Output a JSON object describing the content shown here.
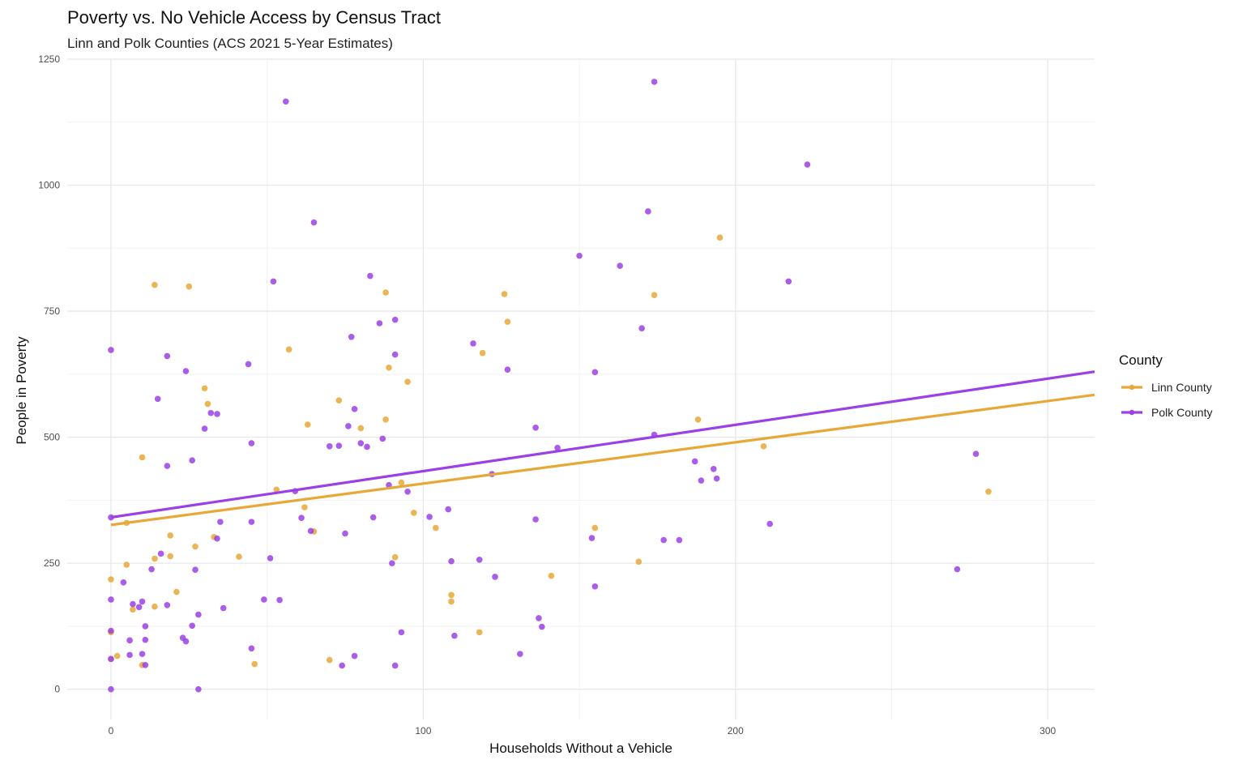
{
  "chart_data": {
    "type": "scatter",
    "title": "Poverty vs. No Vehicle Access by Census Tract",
    "subtitle": "Linn and Polk Counties (ACS 2021 5-Year Estimates)",
    "xlabel": "Households Without a Vehicle",
    "ylabel": "People in Poverty",
    "xlim": [
      -14,
      315
    ],
    "ylim": [
      -60,
      1250
    ],
    "x_ticks": [
      0,
      100,
      200,
      300
    ],
    "y_ticks": [
      0,
      250,
      500,
      750,
      1000,
      1250
    ],
    "grid": true,
    "legend": {
      "title": "County",
      "placement": "right"
    },
    "series": [
      {
        "name": "Linn County",
        "color": "#E8A838",
        "trend": {
          "x": [
            0,
            315
          ],
          "y": [
            326,
            584
          ]
        },
        "points": [
          [
            0,
            218
          ],
          [
            0,
            113
          ],
          [
            0,
            60
          ],
          [
            2,
            66
          ],
          [
            5,
            330
          ],
          [
            5,
            247
          ],
          [
            7,
            158
          ],
          [
            10,
            460
          ],
          [
            10,
            48
          ],
          [
            14,
            802
          ],
          [
            14,
            259
          ],
          [
            14,
            164
          ],
          [
            19,
            305
          ],
          [
            19,
            264
          ],
          [
            21,
            193
          ],
          [
            25,
            799
          ],
          [
            27,
            283
          ],
          [
            30,
            597
          ],
          [
            31,
            566
          ],
          [
            33,
            302
          ],
          [
            41,
            263
          ],
          [
            46,
            50
          ],
          [
            53,
            396
          ],
          [
            57,
            674
          ],
          [
            62,
            361
          ],
          [
            63,
            525
          ],
          [
            65,
            313
          ],
          [
            70,
            58
          ],
          [
            73,
            573
          ],
          [
            80,
            518
          ],
          [
            88,
            787
          ],
          [
            88,
            535
          ],
          [
            89,
            638
          ],
          [
            91,
            262
          ],
          [
            93,
            410
          ],
          [
            95,
            610
          ],
          [
            97,
            350
          ],
          [
            104,
            320
          ],
          [
            109,
            187
          ],
          [
            109,
            174
          ],
          [
            118,
            113
          ],
          [
            119,
            667
          ],
          [
            126,
            784
          ],
          [
            127,
            729
          ],
          [
            141,
            225
          ],
          [
            155,
            320
          ],
          [
            169,
            253
          ],
          [
            174,
            782
          ],
          [
            188,
            535
          ],
          [
            195,
            896
          ],
          [
            209,
            482
          ],
          [
            281,
            392
          ]
        ]
      },
      {
        "name": "Polk County",
        "color": "#9B3FE6",
        "trend": {
          "x": [
            0,
            315
          ],
          "y": [
            341,
            630
          ]
        },
        "points": [
          [
            0,
            673
          ],
          [
            0,
            341
          ],
          [
            0,
            178
          ],
          [
            0,
            116
          ],
          [
            0,
            60
          ],
          [
            0,
            0
          ],
          [
            4,
            212
          ],
          [
            6,
            97
          ],
          [
            6,
            68
          ],
          [
            7,
            169
          ],
          [
            9,
            163
          ],
          [
            10,
            174
          ],
          [
            10,
            70
          ],
          [
            11,
            125
          ],
          [
            11,
            98
          ],
          [
            11,
            48
          ],
          [
            13,
            238
          ],
          [
            15,
            576
          ],
          [
            16,
            269
          ],
          [
            18,
            661
          ],
          [
            18,
            443
          ],
          [
            18,
            167
          ],
          [
            23,
            102
          ],
          [
            24,
            631
          ],
          [
            24,
            95
          ],
          [
            26,
            454
          ],
          [
            26,
            126
          ],
          [
            27,
            237
          ],
          [
            28,
            148
          ],
          [
            28,
            0
          ],
          [
            30,
            517
          ],
          [
            32,
            548
          ],
          [
            34,
            546
          ],
          [
            34,
            299
          ],
          [
            35,
            332
          ],
          [
            36,
            161
          ],
          [
            44,
            645
          ],
          [
            45,
            488
          ],
          [
            45,
            332
          ],
          [
            45,
            81
          ],
          [
            49,
            178
          ],
          [
            51,
            260
          ],
          [
            52,
            809
          ],
          [
            54,
            177
          ],
          [
            56,
            1166
          ],
          [
            59,
            393
          ],
          [
            61,
            340
          ],
          [
            64,
            314
          ],
          [
            65,
            926
          ],
          [
            70,
            482
          ],
          [
            73,
            483
          ],
          [
            74,
            47
          ],
          [
            75,
            309
          ],
          [
            76,
            522
          ],
          [
            77,
            699
          ],
          [
            78,
            556
          ],
          [
            78,
            66
          ],
          [
            80,
            488
          ],
          [
            82,
            481
          ],
          [
            83,
            820
          ],
          [
            84,
            341
          ],
          [
            86,
            726
          ],
          [
            87,
            497
          ],
          [
            89,
            405
          ],
          [
            90,
            250
          ],
          [
            91,
            733
          ],
          [
            91,
            664
          ],
          [
            91,
            47
          ],
          [
            93,
            113
          ],
          [
            95,
            392
          ],
          [
            102,
            342
          ],
          [
            108,
            357
          ],
          [
            109,
            254
          ],
          [
            110,
            106
          ],
          [
            116,
            686
          ],
          [
            118,
            257
          ],
          [
            122,
            427
          ],
          [
            123,
            223
          ],
          [
            127,
            634
          ],
          [
            131,
            70
          ],
          [
            136,
            519
          ],
          [
            136,
            337
          ],
          [
            137,
            141
          ],
          [
            138,
            124
          ],
          [
            143,
            479
          ],
          [
            150,
            860
          ],
          [
            154,
            300
          ],
          [
            155,
            629
          ],
          [
            155,
            204
          ],
          [
            163,
            840
          ],
          [
            170,
            716
          ],
          [
            172,
            948
          ],
          [
            174,
            1205
          ],
          [
            174,
            505
          ],
          [
            177,
            296
          ],
          [
            182,
            296
          ],
          [
            187,
            452
          ],
          [
            189,
            414
          ],
          [
            193,
            437
          ],
          [
            194,
            418
          ],
          [
            217,
            809
          ],
          [
            211,
            328
          ],
          [
            223,
            1041
          ],
          [
            271,
            238
          ],
          [
            277,
            467
          ]
        ]
      }
    ]
  }
}
